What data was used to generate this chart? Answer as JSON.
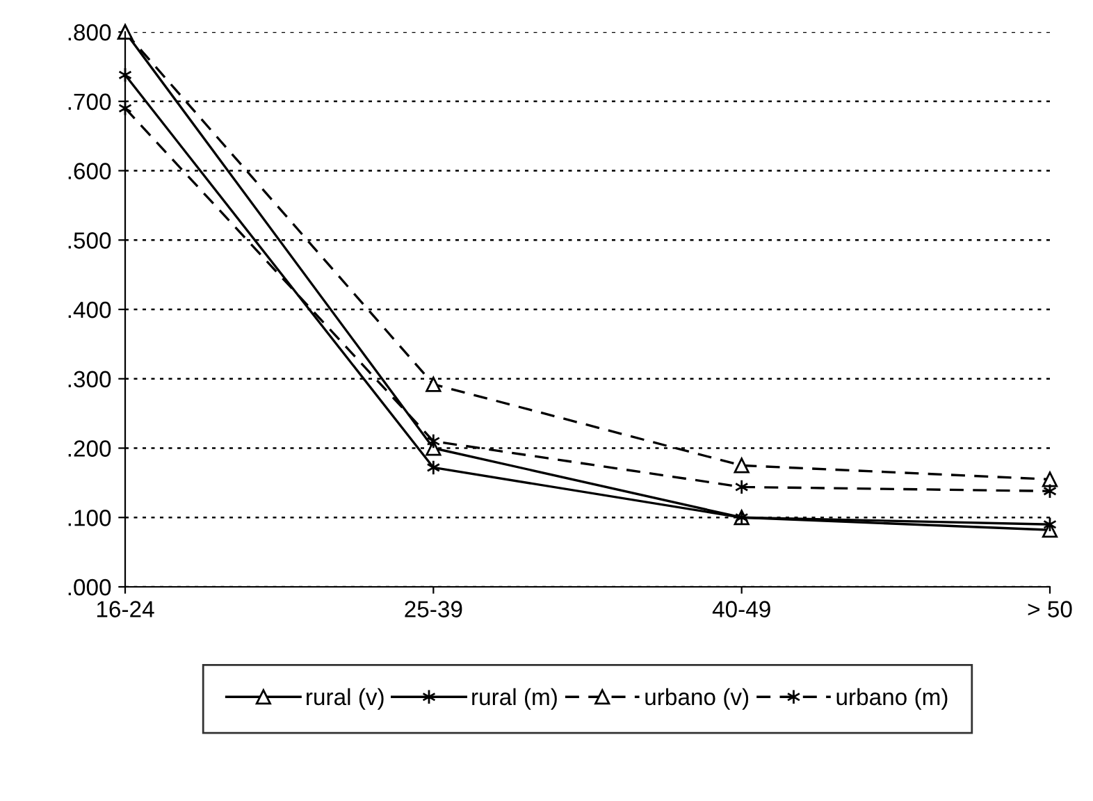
{
  "chart_data": {
    "type": "line",
    "categories": [
      "16-24",
      "25-39",
      "40-49",
      "> 50"
    ],
    "series": [
      {
        "name": "rural (v)",
        "color": "#000000",
        "marker": "triangle",
        "line_style": "solid",
        "values": [
          0.8,
          0.2,
          0.1,
          0.082
        ]
      },
      {
        "name": "rural (m)",
        "color": "#000000",
        "marker": "cross",
        "line_style": "solid",
        "values": [
          0.738,
          0.172,
          0.1,
          0.09
        ]
      },
      {
        "name": "urbano (v)",
        "color": "#000000",
        "marker": "triangle",
        "line_style": "dashed",
        "values": [
          0.8,
          0.292,
          0.175,
          0.155
        ]
      },
      {
        "name": "urbano (m)",
        "color": "#000000",
        "marker": "cross",
        "line_style": "dashed",
        "values": [
          0.69,
          0.21,
          0.144,
          0.138
        ]
      }
    ],
    "ylim": [
      0,
      0.8
    ],
    "yticks": [
      {
        "value": 0,
        "label": ".000"
      },
      {
        "value": 0.1,
        "label": ".100"
      },
      {
        "value": 0.2,
        "label": ".200"
      },
      {
        "value": 0.3,
        "label": ".300"
      },
      {
        "value": 0.4,
        "label": ".400"
      },
      {
        "value": 0.5,
        "label": ".500"
      },
      {
        "value": 0.6,
        "label": ".600"
      },
      {
        "value": 0.7,
        "label": ".700"
      },
      {
        "value": 0.8,
        "label": ".800"
      }
    ],
    "grid": "y",
    "legend": "bottom"
  }
}
